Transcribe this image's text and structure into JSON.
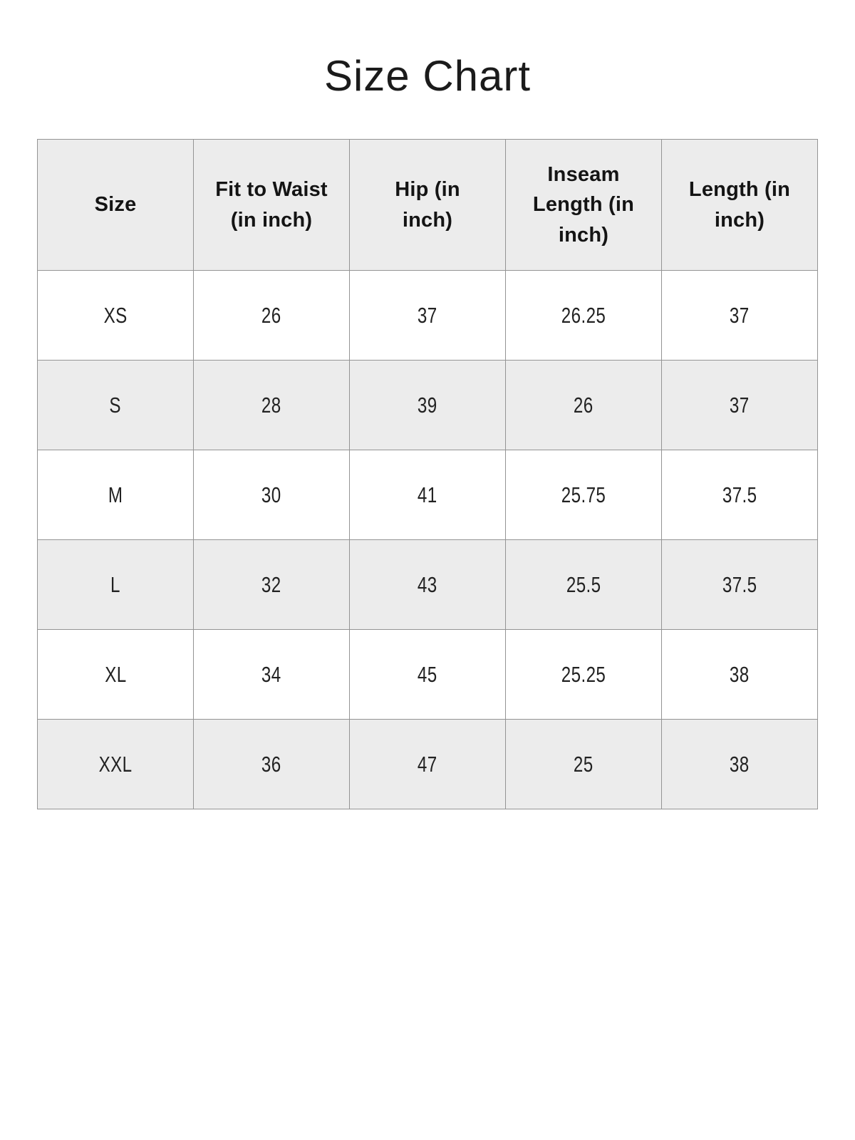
{
  "page": {
    "title": "Size Chart"
  },
  "colors": {
    "page_bg": "#ffffff",
    "header_bg": "#ececec",
    "row_alt_bg": "#ececec",
    "border": "#949494",
    "title_color": "#1b1b1b",
    "header_text": "#141414",
    "cell_text": "#222222"
  },
  "table": {
    "columns": [
      "Size",
      "Fit to Waist\n(in inch)",
      "Hip (in\ninch)",
      "Inseam\nLength (in\ninch)",
      "Length (in\ninch)"
    ],
    "rows": [
      {
        "size": "XS",
        "values": [
          "26",
          "37",
          "26.25",
          "37"
        ]
      },
      {
        "size": "S",
        "values": [
          "28",
          "39",
          "26",
          "37"
        ]
      },
      {
        "size": "M",
        "values": [
          "30",
          "41",
          "25.75",
          "37.5"
        ]
      },
      {
        "size": "L",
        "values": [
          "32",
          "43",
          "25.5",
          "37.5"
        ]
      },
      {
        "size": "XL",
        "values": [
          "34",
          "45",
          "25.25",
          "38"
        ]
      },
      {
        "size": "XXL",
        "values": [
          "36",
          "47",
          "25",
          "38"
        ]
      }
    ]
  }
}
